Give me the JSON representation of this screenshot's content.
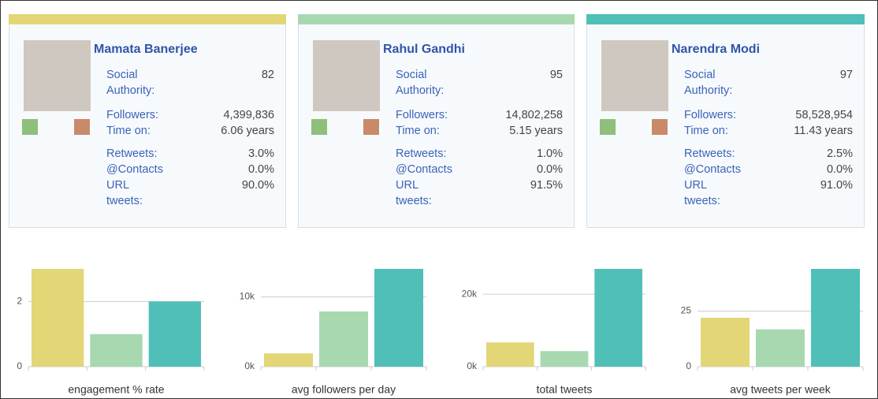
{
  "cards": [
    {
      "name": "Mamata Banerjee",
      "color": "#e2d676",
      "rows": [
        {
          "label": "Social Authority:",
          "value": "82"
        },
        {
          "label": "Followers:",
          "value": "4,399,836"
        },
        {
          "label": "Time on:",
          "value": "6.06 years"
        },
        {
          "label": "Retweets:",
          "value": "3.0%"
        },
        {
          "label": "@Contacts",
          "value": "0.0%"
        },
        {
          "label": "URL tweets:",
          "value": "90.0%"
        }
      ]
    },
    {
      "name": "Rahul Gandhi",
      "color": "#a8d8b0",
      "rows": [
        {
          "label": "Social Authority:",
          "value": "95"
        },
        {
          "label": "Followers:",
          "value": "14,802,258"
        },
        {
          "label": "Time on:",
          "value": "5.15 years"
        },
        {
          "label": "Retweets:",
          "value": "1.0%"
        },
        {
          "label": "@Contacts",
          "value": "0.0%"
        },
        {
          "label": "URL tweets:",
          "value": "91.5%"
        }
      ]
    },
    {
      "name": "Narendra Modi",
      "color": "#4fbfb8",
      "rows": [
        {
          "label": "Social Authority:",
          "value": "97"
        },
        {
          "label": "Followers:",
          "value": "58,528,954"
        },
        {
          "label": "Time on:",
          "value": "11.43 years"
        },
        {
          "label": "Retweets:",
          "value": "2.5%"
        },
        {
          "label": "@Contacts",
          "value": "0.0%"
        },
        {
          "label": "URL tweets:",
          "value": "91.0%"
        }
      ]
    }
  ],
  "chart_data": [
    {
      "type": "bar",
      "xlabel": "engagement % rate",
      "values": [
        3,
        1,
        2
      ],
      "colors": [
        "#e2d676",
        "#a8d8b0",
        "#4fbfb8"
      ],
      "ylim": [
        0,
        3
      ],
      "yticks": [
        0,
        2
      ],
      "grid": true
    },
    {
      "type": "bar",
      "xlabel": "avg followers per day",
      "values": [
        1900,
        7900,
        14000
      ],
      "colors": [
        "#e2d676",
        "#a8d8b0",
        "#4fbfb8"
      ],
      "ylim": [
        0,
        14000
      ],
      "yticks": [
        {
          "value": 0,
          "label": "0k"
        },
        {
          "value": 10000,
          "label": "10k"
        }
      ],
      "grid": true
    },
    {
      "type": "bar",
      "xlabel": "total tweets",
      "values": [
        6700,
        4300,
        27000
      ],
      "colors": [
        "#e2d676",
        "#a8d8b0",
        "#4fbfb8"
      ],
      "ylim": [
        0,
        27000
      ],
      "yticks": [
        {
          "value": 0,
          "label": "0k"
        },
        {
          "value": 20000,
          "label": "20k"
        }
      ],
      "grid": true
    },
    {
      "type": "bar",
      "xlabel": "avg tweets per week",
      "values": [
        22,
        16.8,
        44
      ],
      "colors": [
        "#e2d676",
        "#a8d8b0",
        "#4fbfb8"
      ],
      "ylim": [
        0,
        44
      ],
      "yticks": [
        0,
        25
      ],
      "grid": true
    }
  ]
}
